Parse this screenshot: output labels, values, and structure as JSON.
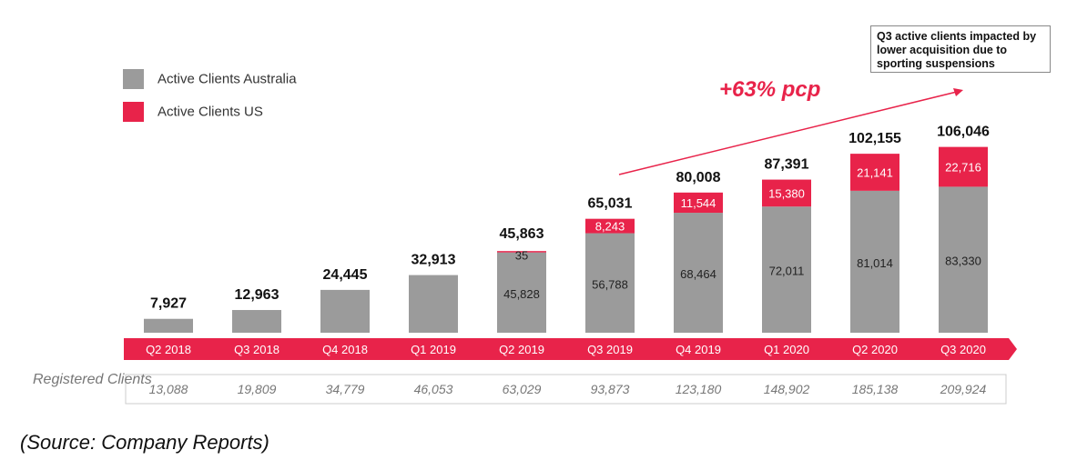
{
  "chart_data": {
    "type": "bar",
    "stacked": true,
    "categories": [
      "Q2 2018",
      "Q3 2018",
      "Q4 2018",
      "Q1 2019",
      "Q2 2019",
      "Q3 2019",
      "Q4 2019",
      "Q1 2020",
      "Q2 2020",
      "Q3 2020"
    ],
    "series": [
      {
        "name": "Active Clients Australia",
        "color": "#9b9b9b",
        "values": [
          7927,
          12963,
          24445,
          32913,
          45828,
          56788,
          68464,
          72011,
          81014,
          83330
        ]
      },
      {
        "name": "Active Clients US",
        "color": "#e8234a",
        "values": [
          0,
          0,
          0,
          0,
          35,
          8243,
          11544,
          15380,
          21141,
          22716
        ]
      }
    ],
    "aus_labels": [
      "",
      "",
      "",
      "",
      "45,828",
      "56,788",
      "68,464",
      "72,011",
      "81,014",
      "83,330"
    ],
    "us_labels": [
      "",
      "",
      "",
      "",
      "35",
      "8,243",
      "11,544",
      "15,380",
      "21,141",
      "22,716"
    ],
    "totals": [
      "7,927",
      "12,963",
      "24,445",
      "32,913",
      "45,863",
      "65,031",
      "80,008",
      "87,391",
      "102,155",
      "106,046"
    ],
    "registered_clients": [
      "13,088",
      "19,809",
      "34,779",
      "46,053",
      "63,029",
      "93,873",
      "123,180",
      "148,902",
      "185,138",
      "209,924"
    ],
    "ylim": [
      0,
      110000
    ],
    "accent": "#e8234a",
    "grey": "#9b9b9b"
  },
  "legend": {
    "aus_label": "Active Clients Australia",
    "us_label": "Active Clients US"
  },
  "annotation": {
    "growth": "+63% pcp",
    "callout": "Q3 active clients impacted by lower acquisition due to sporting suspensions"
  },
  "registered_label": "Registered Clients",
  "source": "(Source: Company Reports)"
}
